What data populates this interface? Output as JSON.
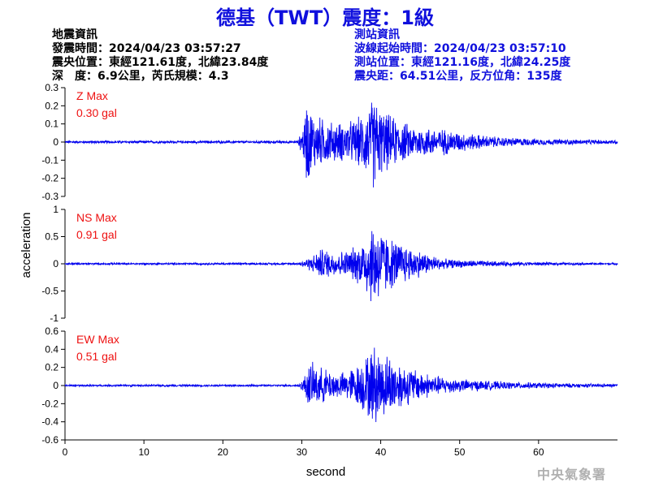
{
  "title": "德基（TWT）震度：1級",
  "quake_info": {
    "header": "地震資訊",
    "origin_time": "發震時間：2024/04/23 03:57:27",
    "epicenter": "震央位置：東經121.61度，北緯23.84度",
    "depth_magnitude": "深　度：6.9公里，芮氏規模：4.3"
  },
  "station_info": {
    "header": "測站資訊",
    "wave_start": "波線起始時間：2024/04/23 03:57:10",
    "station_position": "測站位置：東經121.16度，北緯24.25度",
    "distance_azimuth": "震央距：64.51公里，反方位角：135度"
  },
  "footer": "中央氣象署",
  "colors": {
    "trace": "#0000ee",
    "max_label": "#ee1111",
    "title": "#1010dd"
  },
  "chart_data": {
    "type": "line",
    "xlabel": "second",
    "ylabel": "acceleration",
    "xlim": [
      0,
      70
    ],
    "xticks": [
      0,
      10,
      20,
      30,
      40,
      50,
      60
    ],
    "panels": [
      {
        "name": "Z Max",
        "max_label": "0.30 gal",
        "ylim": [
          -0.3,
          0.3
        ],
        "yticks": [
          -0.3,
          -0.2,
          -0.1,
          0,
          0.1,
          0.2,
          0.3
        ],
        "ytick_labels": [
          "-0.3",
          "-0.2",
          "-0.1",
          "0",
          "0.1",
          "0.2",
          "0.3"
        ],
        "envelope": [
          [
            0,
            0.008
          ],
          [
            29.5,
            0.008
          ],
          [
            30.2,
            0.1
          ],
          [
            30.6,
            0.27
          ],
          [
            31.5,
            0.17
          ],
          [
            34,
            0.12
          ],
          [
            35.5,
            0.12
          ],
          [
            37,
            0.14
          ],
          [
            38.5,
            0.22
          ],
          [
            39.2,
            0.3
          ],
          [
            40,
            0.2
          ],
          [
            42,
            0.14
          ],
          [
            44,
            0.1
          ],
          [
            46,
            0.09
          ],
          [
            48,
            0.08
          ],
          [
            50,
            0.06
          ],
          [
            55,
            0.03
          ],
          [
            60,
            0.02
          ],
          [
            65,
            0.015
          ],
          [
            70,
            0.012
          ]
        ]
      },
      {
        "name": "NS Max",
        "max_label": "0.91 gal",
        "ylim": [
          -1,
          1
        ],
        "yticks": [
          -1,
          -0.5,
          0,
          0.5,
          1
        ],
        "ytick_labels": [
          "-1",
          "-0.5",
          "0",
          "0.5",
          "1"
        ],
        "envelope": [
          [
            0,
            0.02
          ],
          [
            29.5,
            0.02
          ],
          [
            30.5,
            0.1
          ],
          [
            31.5,
            0.18
          ],
          [
            32.5,
            0.32
          ],
          [
            34,
            0.25
          ],
          [
            36,
            0.28
          ],
          [
            37.5,
            0.45
          ],
          [
            38.5,
            0.75
          ],
          [
            39.2,
            0.91
          ],
          [
            40,
            0.75
          ],
          [
            41,
            0.55
          ],
          [
            43,
            0.4
          ],
          [
            44.5,
            0.3
          ],
          [
            46,
            0.2
          ],
          [
            48,
            0.1
          ],
          [
            50,
            0.08
          ],
          [
            55,
            0.05
          ],
          [
            60,
            0.035
          ],
          [
            65,
            0.025
          ],
          [
            70,
            0.02
          ]
        ]
      },
      {
        "name": "EW Max",
        "max_label": "0.51 gal",
        "ylim": [
          -0.6,
          0.6
        ],
        "yticks": [
          -0.6,
          -0.4,
          -0.2,
          0,
          0.2,
          0.4,
          0.6
        ],
        "ytick_labels": [
          "-0.6",
          "-0.4",
          "-0.2",
          "0",
          "0.2",
          "0.4",
          "0.6"
        ],
        "envelope": [
          [
            0,
            0.012
          ],
          [
            29.5,
            0.012
          ],
          [
            30.2,
            0.08
          ],
          [
            31,
            0.3
          ],
          [
            31.5,
            0.25
          ],
          [
            33,
            0.2
          ],
          [
            35,
            0.15
          ],
          [
            37,
            0.25
          ],
          [
            38.5,
            0.4
          ],
          [
            39.2,
            0.51
          ],
          [
            40,
            0.4
          ],
          [
            41,
            0.38
          ],
          [
            43,
            0.25
          ],
          [
            45,
            0.18
          ],
          [
            47,
            0.12
          ],
          [
            50,
            0.08
          ],
          [
            55,
            0.05
          ],
          [
            60,
            0.035
          ],
          [
            65,
            0.025
          ],
          [
            70,
            0.02
          ]
        ]
      }
    ]
  }
}
